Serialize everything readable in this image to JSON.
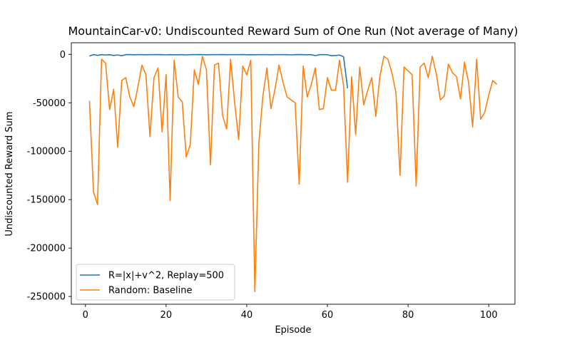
{
  "chart_data": {
    "type": "line",
    "title": "MountainCar-v0: Undiscounted Reward Sum of One Run (Not average of Many)",
    "xlabel": "Episode",
    "ylabel": "Undiscounted Reward Sum",
    "xlim": [
      -3.5,
      106.5
    ],
    "ylim": [
      -258000,
      12000
    ],
    "xticks": [
      0,
      20,
      40,
      60,
      80,
      100
    ],
    "yticks": [
      0,
      -50000,
      -100000,
      -150000,
      -200000,
      -250000
    ],
    "grid": false,
    "legend_position": "lower-left",
    "series": [
      {
        "name": "R=|x|+v^2, Replay=500",
        "color": "#1f77b4",
        "x": [
          1,
          2,
          3,
          4,
          5,
          6,
          7,
          8,
          9,
          10,
          11,
          12,
          13,
          14,
          15,
          16,
          17,
          18,
          19,
          20,
          21,
          22,
          23,
          24,
          25,
          26,
          27,
          28,
          29,
          30,
          31,
          32,
          33,
          34,
          35,
          36,
          37,
          38,
          39,
          40,
          41,
          42,
          43,
          44,
          45,
          46,
          47,
          48,
          49,
          50,
          51,
          52,
          53,
          54,
          55,
          56,
          57,
          58,
          59,
          60,
          61,
          62,
          63,
          64,
          65
        ],
        "y": [
          -1800,
          -200,
          -1000,
          -300,
          -600,
          -400,
          -1100,
          -600,
          -1400,
          -300,
          -200,
          -400,
          -300,
          -300,
          -400,
          -300,
          -300,
          -200,
          -300,
          -500,
          -300,
          -400,
          -400,
          -300,
          -600,
          -300,
          -300,
          -200,
          -300,
          -400,
          -300,
          -300,
          -300,
          -200,
          -400,
          -300,
          -300,
          -300,
          -200,
          -400,
          -300,
          -400,
          -300,
          -300,
          -300,
          -400,
          -300,
          -300,
          -300,
          -300,
          -500,
          -300,
          -200,
          -300,
          -400,
          -300,
          -1300,
          -300,
          -300,
          -400,
          -1400,
          -1200,
          -700,
          -2400,
          -35000
        ]
      },
      {
        "name": "Random: Baseline",
        "color": "#ff7f0e",
        "x": [
          1,
          2,
          3,
          4,
          5,
          6,
          7,
          8,
          9,
          10,
          11,
          12,
          13,
          14,
          15,
          16,
          17,
          18,
          19,
          20,
          21,
          22,
          23,
          24,
          25,
          26,
          27,
          28,
          29,
          30,
          31,
          32,
          33,
          34,
          35,
          36,
          37,
          38,
          39,
          40,
          41,
          42,
          43,
          44,
          45,
          46,
          47,
          48,
          49,
          50,
          51,
          52,
          53,
          54,
          55,
          56,
          57,
          58,
          59,
          60,
          61,
          62,
          63,
          64,
          65,
          66,
          67,
          68,
          69,
          70,
          71,
          72,
          73,
          74,
          75,
          76,
          77,
          78,
          79,
          80,
          81,
          82,
          83,
          84,
          85,
          86,
          87,
          88,
          89,
          90,
          91,
          92,
          93,
          94,
          95,
          96,
          97,
          98,
          99,
          100,
          101,
          102
        ],
        "y": [
          -48000,
          -142000,
          -155000,
          -5000,
          -9000,
          -57000,
          -36000,
          -96000,
          -27000,
          -24000,
          -44000,
          -54000,
          -34000,
          -11000,
          -21000,
          -85000,
          -24000,
          -14000,
          -80000,
          -21000,
          -151000,
          -6000,
          -44000,
          -49000,
          -106000,
          -93000,
          -16000,
          -31000,
          -2000,
          -16000,
          -114000,
          -11000,
          -9000,
          -63000,
          -77000,
          -5000,
          -50000,
          -88000,
          -12000,
          -21000,
          -6000,
          -245000,
          -92000,
          -43000,
          -14000,
          -56000,
          -36000,
          -11000,
          -29000,
          -44000,
          -47000,
          -50000,
          -134000,
          -12000,
          -44000,
          -31000,
          -14000,
          -57000,
          -56000,
          -24000,
          -37000,
          -37000,
          -6000,
          -32000,
          -132000,
          -23000,
          -83000,
          -13000,
          -52000,
          -37000,
          -24000,
          -64000,
          -23000,
          -2000,
          -5000,
          -19000,
          -40000,
          -125000,
          -13000,
          -17000,
          -21000,
          -136000,
          -13000,
          -9000,
          -24000,
          -2000,
          -20000,
          -47000,
          -43000,
          -10000,
          -19000,
          -23000,
          -46000,
          -8000,
          -29000,
          -75000,
          -5000,
          -67000,
          -60000,
          -42000,
          -27000,
          -31000
        ]
      }
    ]
  }
}
